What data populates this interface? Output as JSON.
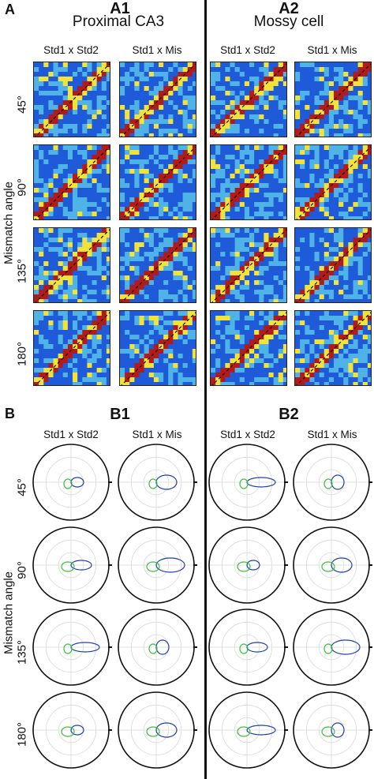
{
  "panel_a": {
    "letter": "A",
    "subpanels": [
      {
        "id": "A1",
        "letter": "A1",
        "title": "Proximal CA3"
      },
      {
        "id": "A2",
        "letter": "A2",
        "title": "Mossy cell"
      }
    ]
  },
  "panel_b": {
    "letter": "B",
    "subpanels": [
      {
        "id": "B1",
        "letter": "B1"
      },
      {
        "id": "B2",
        "letter": "B2"
      }
    ]
  },
  "column_headers": [
    "Std1 x Std2",
    "Std1 x Mis"
  ],
  "row_axis_label": "Mismatch angle",
  "row_labels": [
    "45°",
    "90°",
    "135°",
    "180°"
  ],
  "colors": {
    "low": "#1f5bd8",
    "mid_low": "#4fb3e8",
    "mid": "#f2e33a",
    "high": "#b31b1b",
    "std_trace": "#1f3fb4",
    "mis_trace": "#3fbf3f",
    "diag_line": "#111111"
  }
}
